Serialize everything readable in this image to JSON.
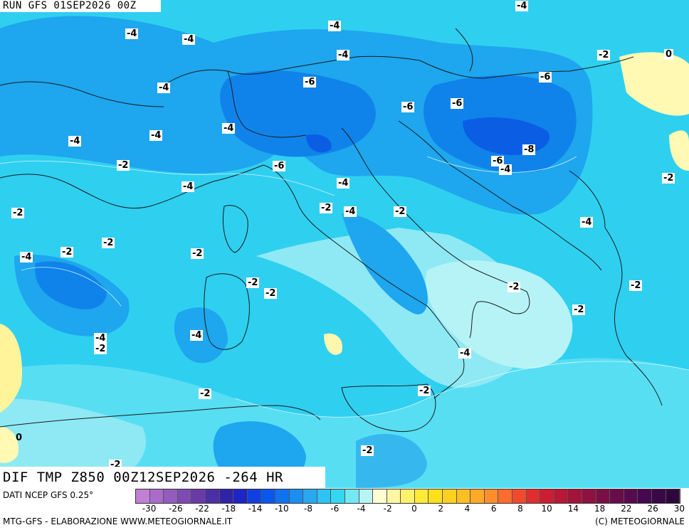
{
  "header": {
    "run": "RUN GFS 01SEP2026 00Z"
  },
  "footer": {
    "title": "DIF TMP Z850 00Z12SEP2026 -264 HR",
    "source": "DATI NCEP GFS 0.25°",
    "credit_left": "MTG-GFS - ELABORAZIONE WWW.METEOGIORNALE.IT",
    "credit_right": "(C) METEOGIORNALE"
  },
  "legend": {
    "colors": [
      "#c17fd6",
      "#a96ccb",
      "#955cbf",
      "#7e4bb4",
      "#6a3aa8",
      "#4b2fa5",
      "#3023a8",
      "#1d25c4",
      "#1140e0",
      "#0b57ee",
      "#0f72f0",
      "#1b8ef2",
      "#29a8f2",
      "#2ec3f3",
      "#33d8f0",
      "#72e8f2",
      "#b8f4f6",
      "#fffdd2",
      "#fff7a1",
      "#fff16c",
      "#ffea37",
      "#ffe019",
      "#ffd11e",
      "#ffbf23",
      "#ffa927",
      "#ff8e2b",
      "#ff6c2e",
      "#f04a2e",
      "#e02e30",
      "#cc1e33",
      "#b81736",
      "#a3143a",
      "#8e1240",
      "#7a0f45",
      "#690d4a",
      "#570b4f",
      "#46094f",
      "#3a0847",
      "#2f063e"
    ],
    "ticks": [
      "-30",
      "-26",
      "-22",
      "-18",
      "-14",
      "-10",
      "-8",
      "-6",
      "-4",
      "-2",
      "0",
      "2",
      "4",
      "6",
      "8",
      "10",
      "14",
      "18",
      "22",
      "26",
      "30"
    ]
  },
  "contour_labels": [
    "-4",
    "-4",
    "-4",
    "-4",
    "-4",
    "-2",
    "0",
    "-4",
    "-6",
    "-6",
    "-6",
    "-6",
    "-4",
    "-4",
    "-4",
    "-8",
    "-6",
    "-4",
    "-2",
    "-2",
    "-4",
    "-6",
    "-4",
    "-2",
    "-4",
    "-2",
    "-2",
    "-2",
    "-4",
    "-2",
    "-2",
    "-2",
    "-2",
    "-2",
    "-2",
    "-2",
    "-4",
    "-4",
    "-2",
    "-4",
    "-2",
    "-2",
    "-4",
    "-2",
    "0",
    "-2"
  ]
}
